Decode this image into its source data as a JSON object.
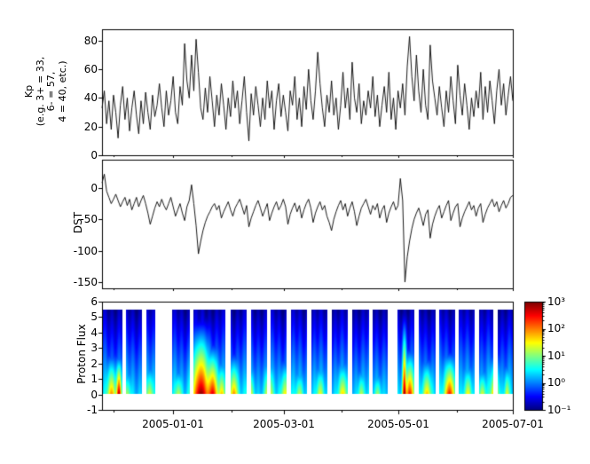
{
  "xaxis": {
    "ticklabels": [
      "2005-01-01",
      "2005-03-01",
      "2005-05-01",
      "2005-07-01"
    ],
    "tickpos": [
      0.173,
      0.4426,
      0.7213,
      1.0
    ],
    "minor_tickpos": [
      0.0274,
      0.3146,
      0.5842,
      0.8629
    ]
  },
  "chart_data": [
    {
      "type": "line",
      "name": "kp-index",
      "ylabel": "Kp\n(e.g. 3+ = 33,\n6- = 57,\n4 = 40, etc.)",
      "ylim": [
        0,
        88
      ],
      "yticks": [
        0,
        20,
        40,
        60,
        80
      ],
      "yticklabels": [
        "0",
        "20",
        "40",
        "60",
        "80"
      ],
      "line_color": "#000000",
      "values": [
        33,
        45,
        22,
        38,
        18,
        42,
        30,
        12,
        35,
        48,
        25,
        40,
        17,
        33,
        45,
        28,
        15,
        38,
        22,
        44,
        30,
        18,
        42,
        27,
        35,
        50,
        33,
        20,
        45,
        28,
        38,
        55,
        30,
        22,
        48,
        35,
        78,
        52,
        40,
        70,
        45,
        81,
        58,
        33,
        25,
        47,
        30,
        55,
        38,
        20,
        42,
        28,
        50,
        35,
        18,
        40,
        27,
        52,
        33,
        45,
        22,
        38,
        55,
        30,
        10,
        43,
        28,
        48,
        35,
        20,
        40,
        25,
        52,
        33,
        45,
        18,
        38,
        50,
        27,
        42,
        30,
        17,
        45,
        35,
        55,
        25,
        40,
        20,
        48,
        32,
        60,
        38,
        25,
        45,
        72,
        50,
        33,
        20,
        42,
        30,
        52,
        28,
        40,
        18,
        35,
        58,
        33,
        47,
        25,
        65,
        40,
        30,
        50,
        22,
        38,
        28,
        45,
        33,
        55,
        27,
        42,
        20,
        35,
        48,
        30,
        58,
        25,
        40,
        18,
        45,
        33,
        50,
        28,
        62,
        83,
        55,
        38,
        70,
        45,
        30,
        60,
        35,
        25,
        77,
        52,
        40,
        28,
        48,
        33,
        20,
        45,
        30,
        55,
        38,
        22,
        63,
        42,
        28,
        50,
        35,
        18,
        40,
        27,
        45,
        33,
        58,
        25,
        48,
        30,
        52,
        38,
        22,
        45,
        60,
        35,
        50,
        28,
        42,
        55,
        38
      ]
    },
    {
      "type": "line",
      "name": "dst-index",
      "ylabel": "DST",
      "ylim": [
        -160,
        45
      ],
      "yticks": [
        0,
        -50,
        -100,
        -150
      ],
      "yticklabels": [
        "0",
        "-50",
        "-100",
        "-150"
      ],
      "line_color": "#000000",
      "values": [
        8,
        22,
        -5,
        -15,
        -25,
        -18,
        -10,
        -20,
        -30,
        -22,
        -15,
        -28,
        -18,
        -35,
        -25,
        -15,
        -30,
        -20,
        -12,
        -25,
        -40,
        -58,
        -45,
        -32,
        -22,
        -30,
        -18,
        -28,
        -35,
        -25,
        -15,
        -30,
        -45,
        -35,
        -25,
        -40,
        -52,
        -30,
        -20,
        5,
        -25,
        -60,
        -105,
        -85,
        -68,
        -55,
        -45,
        -38,
        -30,
        -25,
        -35,
        -28,
        -48,
        -38,
        -30,
        -22,
        -35,
        -45,
        -32,
        -25,
        -18,
        -30,
        -42,
        -28,
        -62,
        -48,
        -38,
        -28,
        -20,
        -32,
        -45,
        -35,
        -25,
        -52,
        -40,
        -30,
        -22,
        -35,
        -28,
        -18,
        -30,
        -58,
        -42,
        -32,
        -24,
        -38,
        -28,
        -48,
        -35,
        -25,
        -18,
        -32,
        -55,
        -40,
        -30,
        -22,
        -35,
        -28,
        -45,
        -55,
        -68,
        -50,
        -38,
        -28,
        -20,
        -35,
        -25,
        -45,
        -32,
        -22,
        -38,
        -60,
        -45,
        -32,
        -25,
        -18,
        -30,
        -42,
        -28,
        -35,
        -25,
        -48,
        -35,
        -28,
        -55,
        -40,
        -30,
        -22,
        -35,
        -28,
        15,
        -20,
        -150,
        -110,
        -85,
        -65,
        -50,
        -40,
        -32,
        -45,
        -60,
        -42,
        -35,
        -80,
        -58,
        -45,
        -35,
        -28,
        -48,
        -38,
        -28,
        -20,
        -52,
        -40,
        -30,
        -25,
        -62,
        -48,
        -38,
        -30,
        -22,
        -35,
        -28,
        -45,
        -32,
        -25,
        -55,
        -42,
        -32,
        -25,
        -18,
        -30,
        -22,
        -38,
        -28,
        -20,
        -32,
        -25,
        -15,
        -12
      ]
    },
    {
      "type": "heatmap",
      "name": "proton-flux-spectrogram",
      "ylabel": "Proton Flux",
      "ylim": [
        -1,
        6
      ],
      "yticks": [
        -1,
        0,
        1,
        2,
        3,
        4,
        5,
        6
      ],
      "yticklabels": [
        "-1",
        "0",
        "1",
        "2",
        "3",
        "4",
        "5",
        "6"
      ],
      "data_y_extent": [
        0,
        5.5
      ],
      "value_scale": "log10",
      "vmin_log10": -1,
      "vmax_log10": 3,
      "base_profile": {
        "bottom": 0.35,
        "top": -0.85
      },
      "strips": [
        [
          0.002,
          0.048
        ],
        [
          0.058,
          0.096
        ],
        [
          0.106,
          0.128
        ],
        [
          0.17,
          0.212
        ],
        [
          0.222,
          0.3
        ],
        [
          0.312,
          0.352
        ],
        [
          0.362,
          0.4
        ],
        [
          0.41,
          0.448
        ],
        [
          0.458,
          0.498
        ],
        [
          0.508,
          0.548
        ],
        [
          0.558,
          0.598
        ],
        [
          0.608,
          0.648
        ],
        [
          0.658,
          0.695
        ],
        [
          0.718,
          0.76
        ],
        [
          0.77,
          0.81
        ],
        [
          0.82,
          0.858
        ],
        [
          0.868,
          0.906
        ],
        [
          0.916,
          0.952
        ],
        [
          0.962,
          1.0
        ]
      ],
      "events": [
        [
          0.022,
          0.01,
          2.0,
          0.6
        ],
        [
          0.04,
          0.006,
          2.9,
          0.55
        ],
        [
          0.06,
          0.008,
          1.2,
          0.45
        ],
        [
          0.115,
          0.008,
          1.4,
          0.5
        ],
        [
          0.185,
          0.008,
          1.3,
          0.45
        ],
        [
          0.24,
          0.02,
          3.0,
          0.95
        ],
        [
          0.268,
          0.012,
          2.7,
          0.7
        ],
        [
          0.29,
          0.008,
          1.8,
          0.55
        ],
        [
          0.32,
          0.01,
          2.0,
          0.6
        ],
        [
          0.36,
          0.008,
          1.5,
          0.5
        ],
        [
          0.405,
          0.01,
          1.7,
          0.55
        ],
        [
          0.445,
          0.01,
          1.6,
          0.55
        ],
        [
          0.48,
          0.008,
          1.3,
          0.45
        ],
        [
          0.53,
          0.008,
          1.5,
          0.5
        ],
        [
          0.585,
          0.01,
          1.7,
          0.55
        ],
        [
          0.63,
          0.007,
          1.3,
          0.45
        ],
        [
          0.67,
          0.007,
          1.2,
          0.4
        ],
        [
          0.735,
          0.005,
          3.0,
          1.0
        ],
        [
          0.748,
          0.01,
          2.5,
          0.65
        ],
        [
          0.79,
          0.01,
          1.8,
          0.55
        ],
        [
          0.845,
          0.012,
          2.5,
          0.6
        ],
        [
          0.89,
          0.008,
          1.6,
          0.5
        ],
        [
          0.925,
          0.008,
          1.4,
          0.45
        ],
        [
          0.955,
          0.01,
          2.0,
          0.6
        ],
        [
          0.985,
          0.006,
          1.5,
          0.5
        ]
      ],
      "colorbar": {
        "colormap": "jet",
        "ticklabels": [
          "10³",
          "10²",
          "10¹",
          "10⁰",
          "10⁻¹"
        ],
        "tick_exponents": [
          3,
          2,
          1,
          0,
          -1
        ]
      }
    }
  ]
}
